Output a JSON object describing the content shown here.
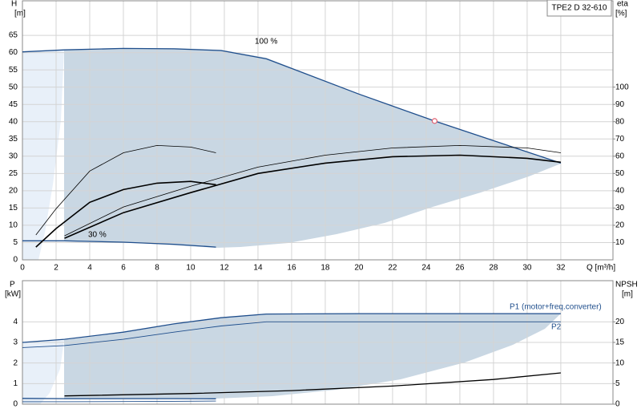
{
  "chart_data": [
    {
      "type": "line",
      "title": "TPE2 D 32-610",
      "ylabel": [
        "H",
        "[m]"
      ],
      "y2label": [
        "eta",
        "[%]"
      ],
      "xlabel": "Q [m³/h]",
      "xlim": [
        0,
        35.1
      ],
      "xticks": [
        0,
        2,
        4,
        6,
        8,
        10,
        12,
        14,
        16,
        18,
        20,
        22,
        24,
        26,
        28,
        30,
        32
      ],
      "ylim": [
        0,
        75
      ],
      "yticks": [
        0,
        5,
        10,
        15,
        20,
        25,
        30,
        35,
        40,
        45,
        50,
        55,
        60,
        65
      ],
      "y2lim": [
        0,
        150
      ],
      "y2ticks": [
        10,
        20,
        30,
        40,
        50,
        60,
        70,
        80,
        90,
        100
      ],
      "grid": true,
      "annotations": [
        "100 %",
        "30 %"
      ],
      "series": [
        {
          "color": "#1f4e8c",
          "width": 1.3,
          "x": [
            0,
            2.5,
            6,
            9,
            11.8,
            14.5,
            20,
            24.5,
            28,
            32
          ],
          "values": [
            60.2,
            60.8,
            61.2,
            61.1,
            60.6,
            58.2,
            48,
            40.2,
            34.5,
            28
          ]
        },
        {
          "color": "#1f4e8c",
          "width": 1.3,
          "x": [
            0,
            2.5,
            6,
            9,
            11.5
          ],
          "values": [
            5.5,
            5.5,
            5.1,
            4.5,
            3.7
          ]
        },
        {
          "color": "#000000",
          "width": 1.6,
          "axis": "y2",
          "x": [
            0.8,
            2,
            4,
            6,
            8,
            10,
            11.5
          ],
          "values": [
            7.4,
            18.1,
            33.3,
            40.7,
            44.4,
            45.4,
            43.5
          ]
        },
        {
          "color": "#000000",
          "width": 0.8,
          "axis": "y2",
          "x": [
            0.8,
            2,
            4,
            6,
            8,
            10,
            11.5
          ],
          "values": [
            14.4,
            29.6,
            51.4,
            62,
            66.2,
            65.3,
            62
          ]
        },
        {
          "color": "#000000",
          "width": 1.6,
          "axis": "y2",
          "x": [
            2.5,
            6,
            10,
            14,
            18,
            22,
            26,
            30,
            32
          ],
          "values": [
            12.5,
            27.3,
            38.9,
            50,
            56,
            59.7,
            60.6,
            58.8,
            56.5
          ]
        },
        {
          "color": "#000000",
          "width": 0.8,
          "axis": "y2",
          "x": [
            2.5,
            6,
            10,
            14,
            18,
            22,
            26,
            30,
            32
          ],
          "values": [
            13.9,
            30.6,
            42.6,
            53.7,
            60.6,
            64.8,
            66.2,
            64.8,
            62
          ]
        }
      ],
      "point": {
        "x": 24.5,
        "y": 40.2,
        "color": "#e06070"
      }
    },
    {
      "type": "line",
      "ylabel": [
        "P",
        "[kW]"
      ],
      "y2label": [
        "NPSH",
        "[m]"
      ],
      "xlim": [
        0,
        35.1
      ],
      "xticks": [
        0,
        2,
        4,
        6,
        8,
        10,
        12,
        14,
        16,
        18,
        20,
        22,
        24,
        26,
        28,
        30,
        32
      ],
      "ylim": [
        0,
        6
      ],
      "yticks": [
        0,
        1,
        2,
        3,
        4
      ],
      "y2lim": [
        0,
        30
      ],
      "y2ticks": [
        0,
        5,
        10,
        15,
        20
      ],
      "grid": true,
      "series": [
        {
          "name": "P1 (motor+freq.converter)",
          "color": "#1f4e8c",
          "width": 1.3,
          "x": [
            0,
            2.5,
            6,
            9,
            11.8,
            14.5,
            20,
            32
          ],
          "values": [
            3.0,
            3.15,
            3.5,
            3.9,
            4.2,
            4.38,
            4.4,
            4.4
          ]
        },
        {
          "name": "P2",
          "color": "#1f4e8c",
          "width": 0.9,
          "x": [
            0,
            2.5,
            6,
            9,
            11.8,
            14.5,
            20,
            32
          ],
          "values": [
            2.75,
            2.85,
            3.15,
            3.5,
            3.8,
            4.0,
            4.0,
            4.0
          ]
        },
        {
          "color": "#1f4e8c",
          "width": 1.3,
          "x": [
            0,
            2.5,
            6,
            9,
            11.5
          ],
          "values": [
            0.28,
            0.27,
            0.27,
            0.27,
            0.26
          ]
        },
        {
          "color": "#1f4e8c",
          "width": 0.9,
          "x": [
            0,
            2.5,
            6,
            9,
            11.5
          ],
          "values": [
            0.12,
            0.12,
            0.13,
            0.14,
            0.15
          ]
        },
        {
          "color": "#000000",
          "width": 1.3,
          "axis": "y2",
          "x": [
            2.5,
            10,
            16,
            22,
            28,
            32
          ],
          "values": [
            2,
            2.6,
            3.3,
            4.4,
            6,
            7.6
          ]
        }
      ]
    }
  ]
}
